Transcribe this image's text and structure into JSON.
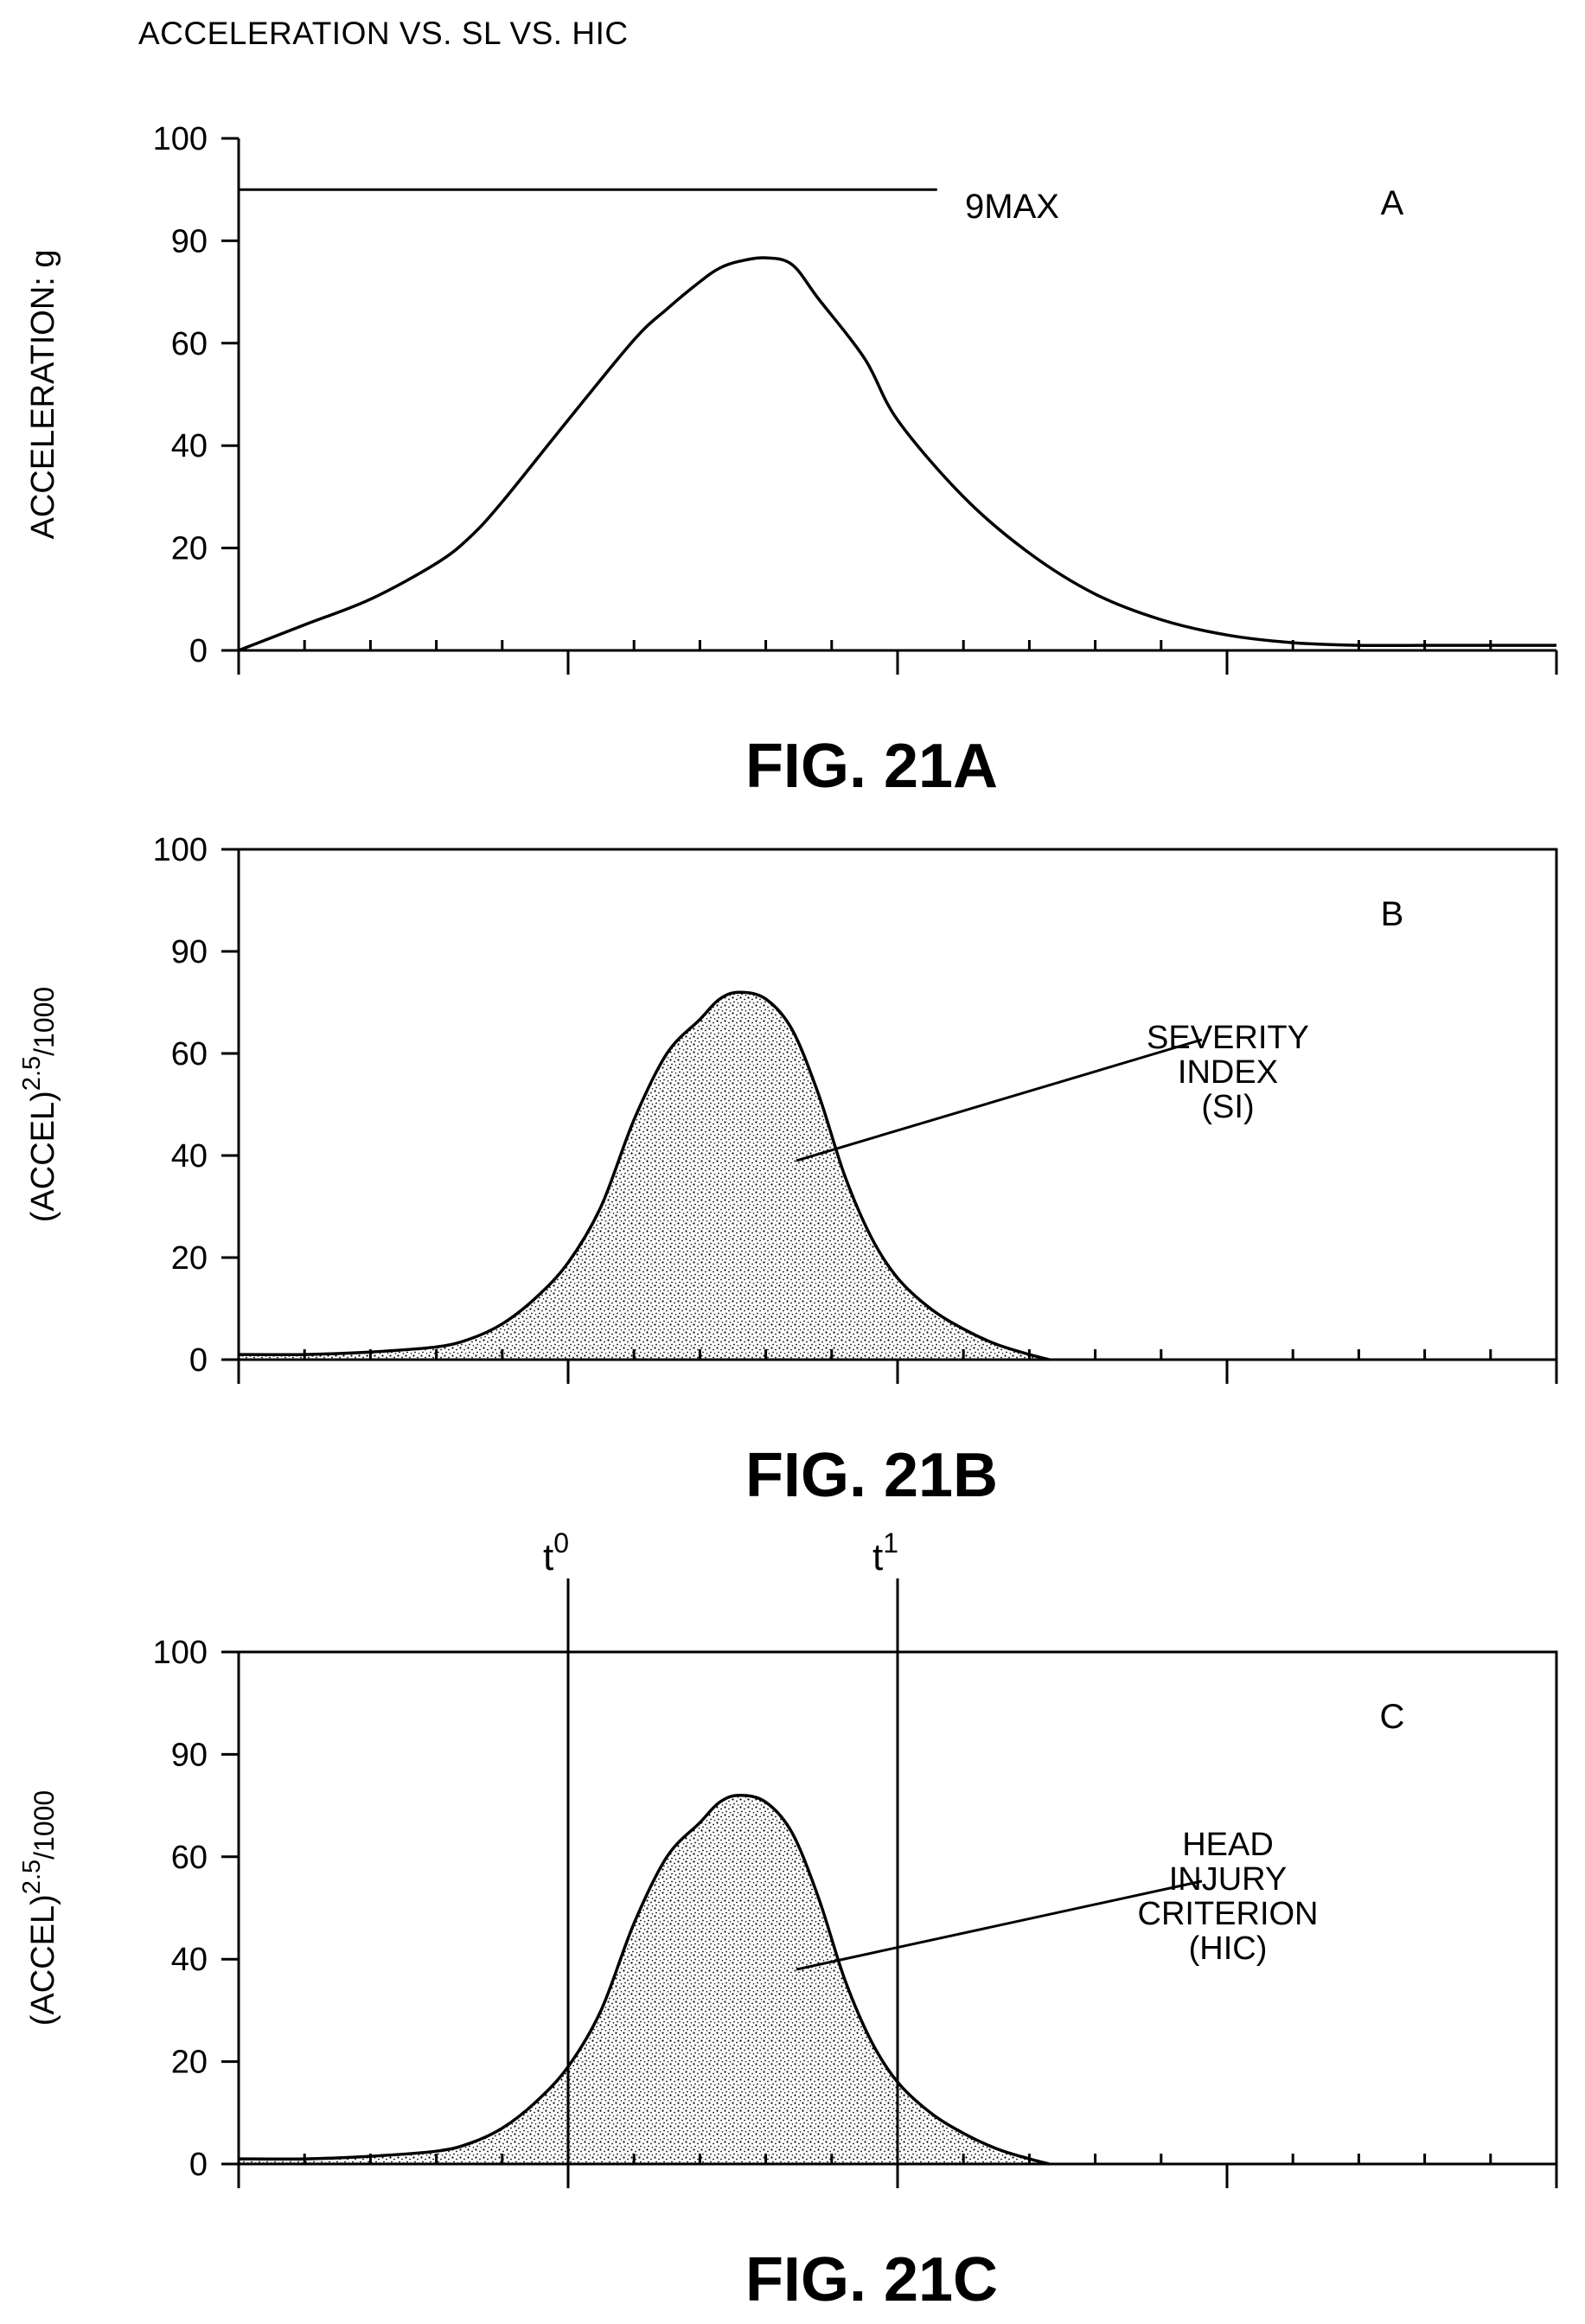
{
  "page_title": "ACCELERATION VS. SL VS. HIC",
  "chart_data": [
    {
      "type": "line",
      "figure_label": "FIG. 21A",
      "panel_letter": "A",
      "ylabel": "ACCELERATION: g",
      "ylabel_superscript": "",
      "ylabel_suffix": "",
      "ylim": [
        0,
        100
      ],
      "ytick_values": [
        0,
        20,
        40,
        60,
        90,
        100
      ],
      "ytick_labels": [
        "0",
        "20",
        "40",
        "60",
        "90",
        "100"
      ],
      "xlim": [
        0,
        20
      ],
      "xticks": [
        0,
        1,
        2,
        3,
        4,
        5,
        6,
        7,
        8,
        9,
        10,
        11,
        12,
        13,
        14,
        15,
        16,
        17,
        18,
        19,
        20
      ],
      "major_xticks": [
        0,
        5,
        10,
        15,
        20
      ],
      "plot_frame": "left-bottom",
      "shaded": false,
      "reference_line": {
        "label": "9MAX",
        "value": 95,
        "x_end": 10.6
      },
      "series": [
        {
          "x": [
            0,
            1,
            2,
            3,
            3.5,
            4,
            5,
            6,
            6.5,
            7,
            7.3,
            7.6,
            8,
            8.4,
            8.8,
            9.5,
            10,
            11,
            12,
            13,
            14,
            15,
            16,
            17,
            18,
            19,
            20
          ],
          "y": [
            0,
            5,
            10,
            17,
            22,
            29,
            45,
            61,
            70,
            78,
            82,
            84,
            85,
            83,
            73,
            57,
            45,
            30,
            19,
            11,
            6,
            3,
            1.5,
            1,
            1,
            1,
            1
          ]
        }
      ],
      "annotation": null,
      "vlines": []
    },
    {
      "type": "area",
      "figure_label": "FIG. 21B",
      "panel_letter": "B",
      "ylabel": "(ACCEL)",
      "ylabel_superscript": "2.5",
      "ylabel_suffix": "/1000",
      "ylim": [
        0,
        100
      ],
      "ytick_values": [
        0,
        20,
        40,
        60,
        90,
        100
      ],
      "ytick_labels": [
        "0",
        "20",
        "40",
        "60",
        "90",
        "100"
      ],
      "xlim": [
        0,
        20
      ],
      "xticks": [
        0,
        1,
        2,
        3,
        4,
        5,
        6,
        7,
        8,
        9,
        10,
        11,
        12,
        13,
        14,
        15,
        16,
        17,
        18,
        19,
        20
      ],
      "major_xticks": [
        0,
        5,
        10,
        15,
        20
      ],
      "plot_frame": "box",
      "shaded": true,
      "reference_line": null,
      "series": [
        {
          "x": [
            0,
            1,
            2,
            3,
            3.5,
            4,
            4.5,
            5,
            5.5,
            6,
            6.5,
            7,
            7.3,
            7.6,
            8,
            8.4,
            8.8,
            9.2,
            9.6,
            10,
            10.5,
            11,
            11.5,
            12,
            12.3
          ],
          "y": [
            1,
            1,
            1.5,
            2.5,
            4,
            7,
            12,
            19,
            30,
            47,
            60,
            70,
            76,
            78,
            76,
            67,
            52,
            36,
            24,
            16,
            10,
            6,
            3,
            1,
            0
          ]
        }
      ],
      "annotation": {
        "lines": [
          "SEVERITY",
          "INDEX",
          "(SI)"
        ],
        "point": [
          8.4,
          39
        ]
      },
      "vlines": []
    },
    {
      "type": "area",
      "figure_label": "FIG. 21C",
      "panel_letter": "C",
      "ylabel": "(ACCEL)",
      "ylabel_superscript": "2.5",
      "ylabel_suffix": "/1000",
      "ylim": [
        0,
        100
      ],
      "ytick_values": [
        0,
        20,
        40,
        60,
        90,
        100
      ],
      "ytick_labels": [
        "0",
        "20",
        "40",
        "60",
        "90",
        "100"
      ],
      "xlim": [
        0,
        20
      ],
      "xticks": [
        0,
        1,
        2,
        3,
        4,
        5,
        6,
        7,
        8,
        9,
        10,
        11,
        12,
        13,
        14,
        15,
        16,
        17,
        18,
        19,
        20
      ],
      "major_xticks": [
        0,
        5,
        10,
        15,
        20
      ],
      "plot_frame": "box",
      "shaded": true,
      "reference_line": null,
      "series": [
        {
          "x": [
            0,
            1,
            2,
            3,
            3.5,
            4,
            4.5,
            5,
            5.5,
            6,
            6.5,
            7,
            7.3,
            7.6,
            8,
            8.4,
            8.8,
            9.2,
            9.6,
            10,
            10.5,
            11,
            11.5,
            12,
            12.3
          ],
          "y": [
            1,
            1,
            1.5,
            2.5,
            4,
            7,
            12,
            19,
            30,
            47,
            60,
            70,
            76,
            78,
            76,
            67,
            52,
            36,
            24,
            16,
            10,
            6,
            3,
            1,
            0
          ]
        }
      ],
      "annotation": {
        "lines": [
          "HEAD",
          "INJURY",
          "CRITERION",
          "(HIC)"
        ],
        "point": [
          8.4,
          38
        ]
      },
      "vlines": [
        {
          "x": 5,
          "label": "t",
          "superscript": "0"
        },
        {
          "x": 10,
          "label": "t",
          "superscript": "1"
        }
      ]
    }
  ]
}
